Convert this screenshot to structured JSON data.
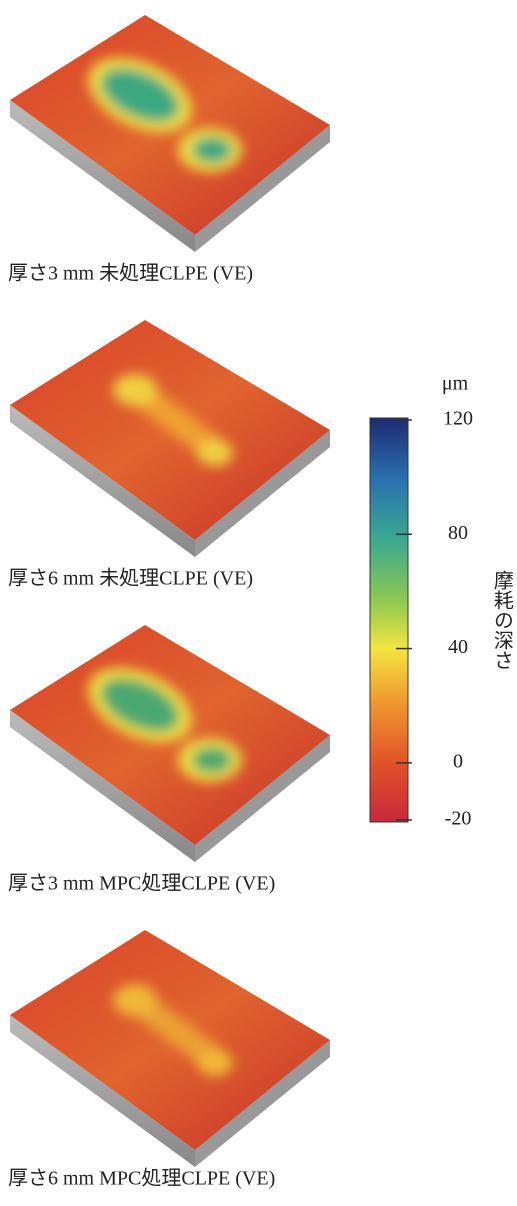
{
  "panels": [
    {
      "caption": "厚さ3 mm 未処理CLPE (VE)"
    },
    {
      "caption": "厚さ6 mm 未処理CLPE (VE)"
    },
    {
      "caption": "厚さ3 mm MPC処理CLPE (VE)"
    },
    {
      "caption": "厚さ6 mm MPC処理CLPE (VE)"
    }
  ],
  "colorbar": {
    "unit": "μm",
    "label": "摩耗の深さ",
    "lim": [
      -20,
      120
    ],
    "ticks": [
      120,
      80,
      40,
      0,
      -20
    ]
  }
}
